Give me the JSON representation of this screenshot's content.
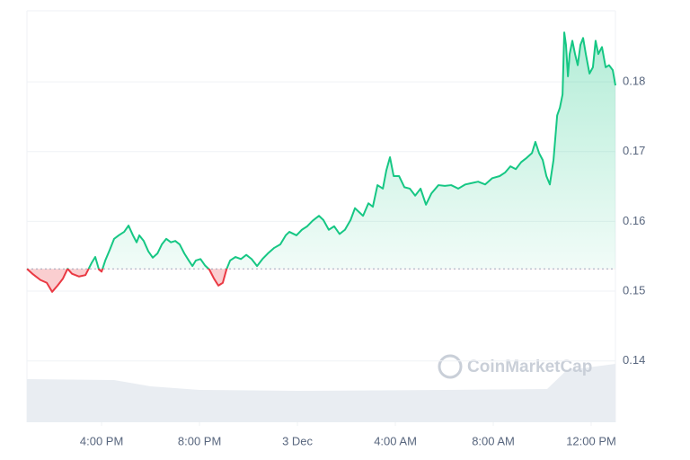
{
  "chart_data": {
    "type": "line",
    "x": [
      12.95,
      13.17,
      13.5,
      13.76,
      13.98,
      14.2,
      14.42,
      14.61,
      14.79,
      15.08,
      15.34,
      15.6,
      15.74,
      15.89,
      16.0,
      16.15,
      16.33,
      16.51,
      16.7,
      16.92,
      17.1,
      17.28,
      17.43,
      17.54,
      17.72,
      17.91,
      18.09,
      18.28,
      18.46,
      18.64,
      18.83,
      19.01,
      19.19,
      19.38,
      19.56,
      19.71,
      19.85,
      20.04,
      20.22,
      20.4,
      20.59,
      20.77,
      20.95,
      21.1,
      21.25,
      21.47,
      21.69,
      21.91,
      22.13,
      22.35,
      22.57,
      22.79,
      23.05,
      23.3,
      23.52,
      23.67,
      23.96,
      24.18,
      24.4,
      24.62,
      24.88,
      25.06,
      25.28,
      25.5,
      25.72,
      25.94,
      26.17,
      26.35,
      26.53,
      26.68,
      26.9,
      27.08,
      27.27,
      27.49,
      27.63,
      27.78,
      27.93,
      28.15,
      28.37,
      28.59,
      28.81,
      29.03,
      29.25,
      29.47,
      29.76,
      30.02,
      30.28,
      30.57,
      30.86,
      31.12,
      31.38,
      31.67,
      31.96,
      32.26,
      32.48,
      32.7,
      32.92,
      33.14,
      33.36,
      33.58,
      33.72,
      33.87,
      34.02,
      34.17,
      34.31,
      34.46,
      34.61,
      34.72,
      34.83,
      34.9,
      34.97,
      35.05,
      35.12,
      35.23,
      35.34,
      35.45,
      35.56,
      35.67,
      35.78,
      35.93,
      36.07,
      36.18,
      36.29,
      36.44,
      36.59,
      36.73,
      36.88,
      36.99
    ],
    "values": [
      0.1532,
      0.1525,
      0.1516,
      0.1512,
      0.1499,
      0.1508,
      0.1518,
      0.1532,
      0.1525,
      0.1521,
      0.1523,
      0.1541,
      0.1549,
      0.1531,
      0.1528,
      0.1544,
      0.1559,
      0.1575,
      0.158,
      0.1585,
      0.1594,
      0.158,
      0.157,
      0.158,
      0.1572,
      0.1557,
      0.1548,
      0.1554,
      0.1567,
      0.1575,
      0.157,
      0.1572,
      0.1567,
      0.1554,
      0.1544,
      0.1536,
      0.1544,
      0.1546,
      0.1537,
      0.1531,
      0.1518,
      0.1508,
      0.1512,
      0.1531,
      0.1544,
      0.1549,
      0.1546,
      0.1552,
      0.1546,
      0.1536,
      0.1546,
      0.1554,
      0.1562,
      0.1567,
      0.158,
      0.1585,
      0.158,
      0.1588,
      0.1593,
      0.1601,
      0.1608,
      0.1602,
      0.1588,
      0.1593,
      0.1582,
      0.1588,
      0.1602,
      0.1619,
      0.1613,
      0.1608,
      0.1626,
      0.1621,
      0.1652,
      0.1647,
      0.1673,
      0.1692,
      0.1665,
      0.1665,
      0.1649,
      0.1647,
      0.1637,
      0.1647,
      0.1624,
      0.164,
      0.1652,
      0.1651,
      0.1652,
      0.1647,
      0.1653,
      0.1655,
      0.1657,
      0.1653,
      0.1662,
      0.1665,
      0.167,
      0.1679,
      0.1675,
      0.1685,
      0.1691,
      0.1698,
      0.1714,
      0.1698,
      0.1688,
      0.1665,
      0.1653,
      0.1688,
      0.1752,
      0.1763,
      0.1782,
      0.1871,
      0.1853,
      0.1808,
      0.184,
      0.1859,
      0.184,
      0.1824,
      0.1853,
      0.1863,
      0.184,
      0.1812,
      0.1821,
      0.1859,
      0.184,
      0.185,
      0.1821,
      0.1824,
      0.1817,
      0.1795
    ],
    "baseline": 0.1532,
    "up_color": "#16c784",
    "down_color": "#ea3943",
    "volume": {
      "color": "#e9edf2",
      "x": [
        12.95,
        16.5,
        18.0,
        20.0,
        24.0,
        30.0,
        34.2,
        35.0,
        36.99
      ],
      "values": [
        48,
        47,
        40,
        36,
        35,
        36,
        37,
        58,
        65
      ]
    },
    "xlim": [
      12.95,
      36.99
    ],
    "xticks": [
      {
        "value": 16,
        "label": "4:00 PM"
      },
      {
        "value": 20,
        "label": "8:00 PM"
      },
      {
        "value": 24,
        "label": "3 Dec"
      },
      {
        "value": 28,
        "label": "4:00 AM"
      },
      {
        "value": 32,
        "label": "8:00 AM"
      },
      {
        "value": 36,
        "label": "12:00 PM"
      }
    ],
    "ylim": [
      0.1312,
      0.1902
    ],
    "yticks": [
      0.14,
      0.15,
      0.16,
      0.17,
      0.18
    ],
    "grid": true,
    "watermark": "CoinMarketCap"
  }
}
